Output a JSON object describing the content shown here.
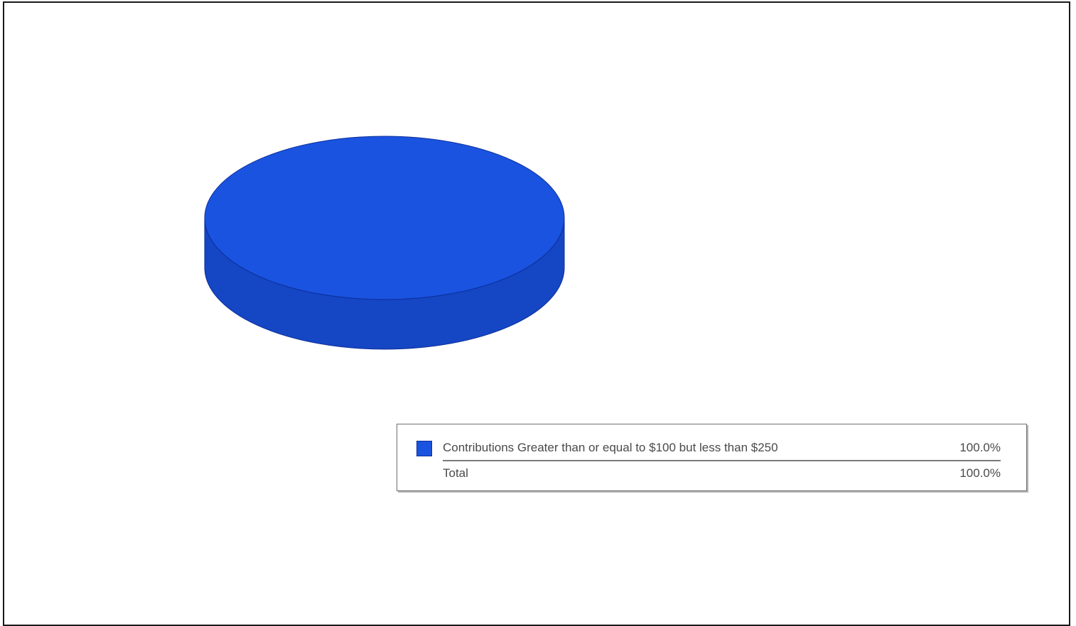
{
  "chart_data": {
    "type": "pie",
    "three_d": true,
    "title": "",
    "slices": [
      {
        "label": "Contributions Greater than or equal to $100 but less than $250",
        "value": 100.0,
        "display": "100.0%",
        "color": "#1a53e0"
      }
    ],
    "legend": {
      "position": "bottom-right",
      "total_label": "Total",
      "total_value": "100.0%"
    }
  },
  "colors": {
    "slice_top": "#1a53e0",
    "slice_side": "#1546c4",
    "outline": "#0c2f9a"
  }
}
